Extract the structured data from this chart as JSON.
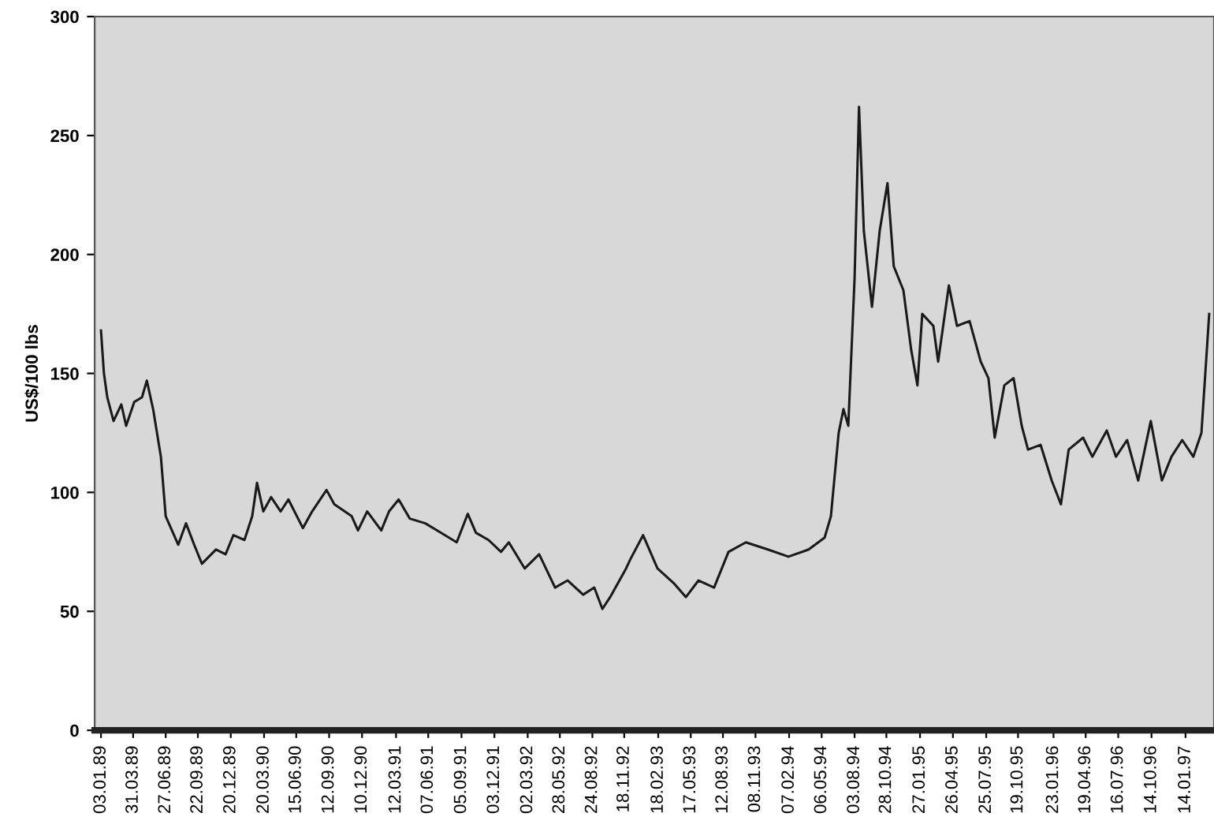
{
  "chart_data": {
    "type": "line",
    "ylabel": "US$/100 lbs",
    "ylim": [
      0,
      300
    ],
    "yticks": [
      0,
      50,
      100,
      150,
      200,
      250,
      300
    ],
    "xlim": [
      "1988-12-17",
      "1997-04-01"
    ],
    "xticks": [
      {
        "value": "1989-01-03",
        "label": "03.01.89"
      },
      {
        "value": "1989-03-31",
        "label": "31.03.89"
      },
      {
        "value": "1989-06-27",
        "label": "27.06.89"
      },
      {
        "value": "1989-09-22",
        "label": "22.09.89"
      },
      {
        "value": "1989-12-20",
        "label": "20.12.89"
      },
      {
        "value": "1990-03-20",
        "label": "20.03.90"
      },
      {
        "value": "1990-06-15",
        "label": "15.06.90"
      },
      {
        "value": "1990-09-12",
        "label": "12.09.90"
      },
      {
        "value": "1990-12-10",
        "label": "10.12.90"
      },
      {
        "value": "1991-03-12",
        "label": "12.03.91"
      },
      {
        "value": "1991-06-07",
        "label": "07.06.91"
      },
      {
        "value": "1991-09-05",
        "label": "05.09.91"
      },
      {
        "value": "1991-12-03",
        "label": "03.12.91"
      },
      {
        "value": "1992-03-02",
        "label": "02.03.92"
      },
      {
        "value": "1992-05-28",
        "label": "28.05.92"
      },
      {
        "value": "1992-08-24",
        "label": "24.08.92"
      },
      {
        "value": "1992-11-18",
        "label": "18.11.92"
      },
      {
        "value": "1993-02-18",
        "label": "18.02.93"
      },
      {
        "value": "1993-05-17",
        "label": "17.05.93"
      },
      {
        "value": "1993-08-12",
        "label": "12.08.93"
      },
      {
        "value": "1993-11-08",
        "label": "08.11.93"
      },
      {
        "value": "1994-02-07",
        "label": "07.02.94"
      },
      {
        "value": "1994-05-06",
        "label": "06.05.94"
      },
      {
        "value": "1994-08-03",
        "label": "03.08.94"
      },
      {
        "value": "1994-10-28",
        "label": "28.10.94"
      },
      {
        "value": "1995-01-27",
        "label": "27.01.95"
      },
      {
        "value": "1995-04-26",
        "label": "26.04.95"
      },
      {
        "value": "1995-07-25",
        "label": "25.07.95"
      },
      {
        "value": "1995-10-19",
        "label": "19.10.95"
      },
      {
        "value": "1996-01-23",
        "label": "23.01.96"
      },
      {
        "value": "1996-04-19",
        "label": "19.04.96"
      },
      {
        "value": "1996-07-16",
        "label": "16.07.96"
      },
      {
        "value": "1996-10-14",
        "label": "14.10.96"
      },
      {
        "value": "1997-01-14",
        "label": "14.01.97"
      }
    ],
    "grid": false,
    "legend": false,
    "marker": "none",
    "line_style": "solid",
    "series": [
      {
        "color": "#1a1a1a",
        "x": [
          "1989-01-03",
          "1989-01-11",
          "1989-01-20",
          "1989-02-06",
          "1989-02-27",
          "1989-03-12",
          "1989-04-03",
          "1989-04-24",
          "1989-05-07",
          "1989-05-24",
          "1989-06-14",
          "1989-06-27",
          "1989-07-31",
          "1989-08-21",
          "1989-09-12",
          "1989-10-03",
          "1989-11-10",
          "1989-12-06",
          "1989-12-27",
          "1990-01-26",
          "1990-02-16",
          "1990-03-01",
          "1990-03-18",
          "1990-04-08",
          "1990-05-04",
          "1990-05-25",
          "1990-07-03",
          "1990-07-28",
          "1990-09-05",
          "1990-09-26",
          "1990-11-12",
          "1990-11-29",
          "1990-12-24",
          "1991-01-31",
          "1991-02-21",
          "1991-03-19",
          "1991-04-18",
          "1991-05-30",
          "1991-07-12",
          "1991-08-23",
          "1991-09-22",
          "1991-10-14",
          "1991-11-17",
          "1991-12-21",
          "1992-01-11",
          "1992-02-23",
          "1992-04-02",
          "1992-05-15",
          "1992-06-18",
          "1992-07-30",
          "1992-08-29",
          "1992-09-20",
          "1992-10-11",
          "1992-11-23",
          "1992-12-05",
          "1993-01-08",
          "1993-02-16",
          "1993-03-31",
          "1993-05-04",
          "1993-06-07",
          "1993-07-19",
          "1993-08-27",
          "1993-10-13",
          "1993-12-11",
          "1994-02-05",
          "1994-04-01",
          "1994-05-14",
          "1994-05-31",
          "1994-06-21",
          "1994-07-04",
          "1994-07-17",
          "1994-08-03",
          "1994-08-15",
          "1994-08-28",
          "1994-09-19",
          "1994-10-10",
          "1994-10-31",
          "1994-11-17",
          "1994-12-13",
          "1995-01-03",
          "1995-01-20",
          "1995-02-02",
          "1995-03-04",
          "1995-03-17",
          "1995-04-15",
          "1995-05-07",
          "1995-06-10",
          "1995-07-10",
          "1995-07-31",
          "1995-08-17",
          "1995-09-12",
          "1995-10-07",
          "1995-10-29",
          "1995-11-15",
          "1995-12-19",
          "1996-01-18",
          "1996-02-12",
          "1996-03-04",
          "1996-04-12",
          "1996-05-07",
          "1996-06-15",
          "1996-07-10",
          "1996-08-09",
          "1996-09-08",
          "1996-10-12",
          "1996-11-11",
          "1996-12-07",
          "1997-01-05",
          "1997-02-04",
          "1997-02-26",
          "1997-03-19"
        ],
        "values": [
          168,
          150,
          140,
          130,
          137,
          128,
          138,
          140,
          147,
          135,
          115,
          90,
          78,
          87,
          78,
          70,
          76,
          74,
          82,
          80,
          90,
          104,
          92,
          98,
          92,
          97,
          85,
          92,
          101,
          95,
          90,
          84,
          92,
          84,
          92,
          97,
          89,
          87,
          83,
          79,
          91,
          83,
          80,
          75,
          79,
          68,
          74,
          60,
          63,
          57,
          60,
          51,
          56,
          68,
          72,
          82,
          68,
          62,
          56,
          63,
          60,
          75,
          79,
          76,
          73,
          76,
          81,
          90,
          125,
          135,
          128,
          190,
          262,
          210,
          178,
          210,
          230,
          195,
          185,
          160,
          145,
          175,
          170,
          155,
          187,
          170,
          172,
          155,
          148,
          123,
          145,
          148,
          128,
          118,
          120,
          105,
          95,
          118,
          123,
          115,
          126,
          115,
          122,
          105,
          130,
          105,
          115,
          122,
          115,
          125,
          175
        ]
      }
    ]
  }
}
